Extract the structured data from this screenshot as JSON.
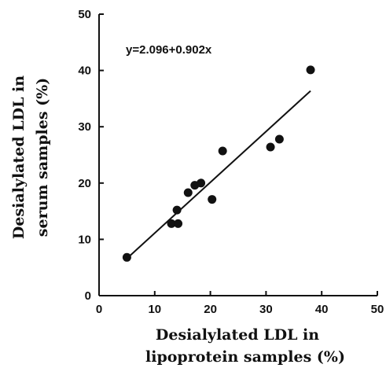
{
  "chart_data": {
    "type": "scatter",
    "title": "",
    "xlabel_lines": [
      "Desialylated LDL in",
      "lipoprotein samples (%)"
    ],
    "ylabel_lines": [
      "Desialylated LDL in",
      "serum samples (%)"
    ],
    "xlim": [
      0,
      50
    ],
    "ylim": [
      0,
      50
    ],
    "x_ticks": [
      0,
      10,
      20,
      30,
      40,
      50
    ],
    "y_ticks": [
      0,
      10,
      20,
      30,
      40,
      50
    ],
    "grid": false,
    "legend": "none",
    "annotation": "y=2.096+0.902x",
    "points": [
      {
        "x": 5.0,
        "y": 6.8
      },
      {
        "x": 13.0,
        "y": 12.8
      },
      {
        "x": 14.2,
        "y": 12.8
      },
      {
        "x": 14.0,
        "y": 15.2
      },
      {
        "x": 16.0,
        "y": 18.3
      },
      {
        "x": 17.2,
        "y": 19.6
      },
      {
        "x": 18.3,
        "y": 20.0
      },
      {
        "x": 20.3,
        "y": 17.1
      },
      {
        "x": 22.2,
        "y": 25.7
      },
      {
        "x": 30.8,
        "y": 26.4
      },
      {
        "x": 32.4,
        "y": 27.8
      },
      {
        "x": 38.0,
        "y": 40.1
      }
    ],
    "fit_line": {
      "intercept": 2.096,
      "slope": 0.902,
      "x_range": [
        5,
        38
      ]
    }
  },
  "colors": {
    "ink": "#111111",
    "background": "#ffffff"
  }
}
